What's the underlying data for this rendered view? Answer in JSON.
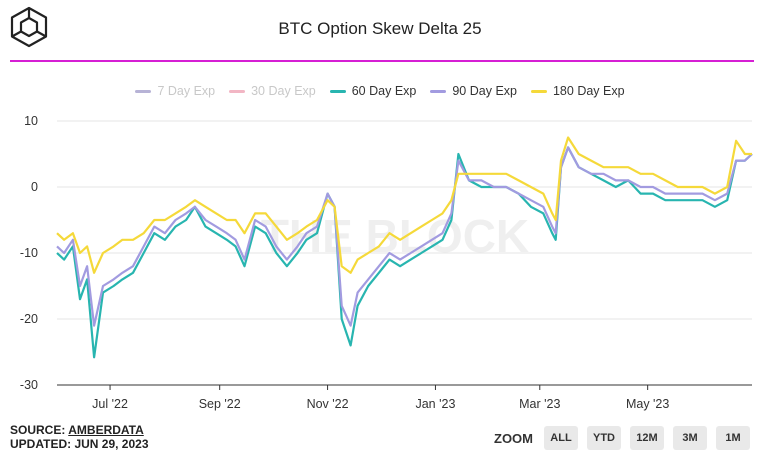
{
  "header": {
    "title": "BTC Option Skew Delta 25"
  },
  "watermark": "THE BLOCK",
  "footer": {
    "source_prefix": "SOURCE: ",
    "source_name": "AMBERDATA",
    "updated": "UPDATED: JUN 29, 2023"
  },
  "zoom": {
    "label": "ZOOM",
    "buttons": [
      "ALL",
      "YTD",
      "12M",
      "3M",
      "1M"
    ]
  },
  "colors": {
    "accent_rule": "#d61fd4",
    "grid": "#e6e6e6",
    "axis": "#333333"
  },
  "chart_data": {
    "type": "line",
    "title": "BTC Option Skew Delta 25",
    "xlabel": "",
    "ylabel": "",
    "ylim": [
      -30,
      10
    ],
    "xlim": [
      "2022-06-01",
      "2023-06-29"
    ],
    "y_ticks": [
      10,
      0,
      -10,
      -20,
      -30
    ],
    "x_ticks": [
      {
        "label": "Jul '22",
        "date": "2022-07-01"
      },
      {
        "label": "Sep '22",
        "date": "2022-09-01"
      },
      {
        "label": "Nov '22",
        "date": "2022-11-01"
      },
      {
        "label": "Jan '23",
        "date": "2023-01-01"
      },
      {
        "label": "Mar '23",
        "date": "2023-03-01"
      },
      {
        "label": "May '23",
        "date": "2023-05-01"
      }
    ],
    "grid": true,
    "legend_position": "top-center",
    "series": [
      {
        "name": "7 Day Exp",
        "color": "#b7b3d6",
        "visible": false,
        "values": []
      },
      {
        "name": "30 Day Exp",
        "color": "#f2b6c4",
        "visible": false,
        "values": []
      },
      {
        "name": "60 Day Exp",
        "color": "#28b5b0",
        "visible": true,
        "values": [
          [
            "2022-06-01",
            -10
          ],
          [
            "2022-06-05",
            -11
          ],
          [
            "2022-06-10",
            -9
          ],
          [
            "2022-06-14",
            -17
          ],
          [
            "2022-06-18",
            -14
          ],
          [
            "2022-06-22",
            -25.8
          ],
          [
            "2022-06-27",
            -16
          ],
          [
            "2022-07-03",
            -15
          ],
          [
            "2022-07-08",
            -14
          ],
          [
            "2022-07-14",
            -13
          ],
          [
            "2022-07-20",
            -10
          ],
          [
            "2022-07-26",
            -7
          ],
          [
            "2022-08-01",
            -8
          ],
          [
            "2022-08-07",
            -6
          ],
          [
            "2022-08-13",
            -5
          ],
          [
            "2022-08-18",
            -3
          ],
          [
            "2022-08-24",
            -6
          ],
          [
            "2022-08-30",
            -7
          ],
          [
            "2022-09-05",
            -8
          ],
          [
            "2022-09-10",
            -9
          ],
          [
            "2022-09-15",
            -12
          ],
          [
            "2022-09-21",
            -6
          ],
          [
            "2022-09-27",
            -7
          ],
          [
            "2022-10-03",
            -10
          ],
          [
            "2022-10-09",
            -12
          ],
          [
            "2022-10-15",
            -10
          ],
          [
            "2022-10-20",
            -8
          ],
          [
            "2022-10-26",
            -7
          ],
          [
            "2022-11-01",
            -1
          ],
          [
            "2022-11-05",
            -3
          ],
          [
            "2022-11-09",
            -20
          ],
          [
            "2022-11-14",
            -24
          ],
          [
            "2022-11-18",
            -18
          ],
          [
            "2022-11-24",
            -15
          ],
          [
            "2022-11-30",
            -13
          ],
          [
            "2022-12-06",
            -11
          ],
          [
            "2022-12-12",
            -12
          ],
          [
            "2022-12-18",
            -11
          ],
          [
            "2022-12-24",
            -10
          ],
          [
            "2022-12-30",
            -9
          ],
          [
            "2023-01-05",
            -8
          ],
          [
            "2023-01-10",
            -5
          ],
          [
            "2023-01-14",
            5
          ],
          [
            "2023-01-20",
            1
          ],
          [
            "2023-01-27",
            0
          ],
          [
            "2023-02-03",
            0
          ],
          [
            "2023-02-10",
            0
          ],
          [
            "2023-02-17",
            -1
          ],
          [
            "2023-02-24",
            -3
          ],
          [
            "2023-03-03",
            -4
          ],
          [
            "2023-03-08",
            -7
          ],
          [
            "2023-03-10",
            -8
          ],
          [
            "2023-03-13",
            3
          ],
          [
            "2023-03-17",
            6
          ],
          [
            "2023-03-23",
            3
          ],
          [
            "2023-03-30",
            2
          ],
          [
            "2023-04-06",
            1
          ],
          [
            "2023-04-13",
            0
          ],
          [
            "2023-04-20",
            1
          ],
          [
            "2023-04-27",
            -1
          ],
          [
            "2023-05-04",
            -1
          ],
          [
            "2023-05-11",
            -2
          ],
          [
            "2023-05-18",
            -2
          ],
          [
            "2023-05-25",
            -2
          ],
          [
            "2023-06-01",
            -2
          ],
          [
            "2023-06-08",
            -3
          ],
          [
            "2023-06-15",
            -2
          ],
          [
            "2023-06-20",
            4
          ],
          [
            "2023-06-25",
            4
          ],
          [
            "2023-06-29",
            5
          ]
        ]
      },
      {
        "name": "90 Day Exp",
        "color": "#a29be0",
        "visible": true,
        "values": [
          [
            "2022-06-01",
            -9
          ],
          [
            "2022-06-05",
            -10
          ],
          [
            "2022-06-10",
            -8
          ],
          [
            "2022-06-14",
            -15
          ],
          [
            "2022-06-18",
            -12
          ],
          [
            "2022-06-22",
            -21
          ],
          [
            "2022-06-27",
            -15
          ],
          [
            "2022-07-03",
            -14
          ],
          [
            "2022-07-08",
            -13
          ],
          [
            "2022-07-14",
            -12
          ],
          [
            "2022-07-20",
            -9
          ],
          [
            "2022-07-26",
            -6
          ],
          [
            "2022-08-01",
            -7
          ],
          [
            "2022-08-07",
            -5
          ],
          [
            "2022-08-13",
            -4
          ],
          [
            "2022-08-18",
            -3
          ],
          [
            "2022-08-24",
            -5
          ],
          [
            "2022-08-30",
            -6
          ],
          [
            "2022-09-05",
            -7
          ],
          [
            "2022-09-10",
            -8
          ],
          [
            "2022-09-15",
            -11
          ],
          [
            "2022-09-21",
            -5
          ],
          [
            "2022-09-27",
            -6
          ],
          [
            "2022-10-03",
            -9
          ],
          [
            "2022-10-09",
            -11
          ],
          [
            "2022-10-15",
            -9
          ],
          [
            "2022-10-20",
            -7
          ],
          [
            "2022-10-26",
            -6
          ],
          [
            "2022-11-01",
            -1
          ],
          [
            "2022-11-05",
            -3
          ],
          [
            "2022-11-09",
            -18
          ],
          [
            "2022-11-14",
            -21
          ],
          [
            "2022-11-18",
            -16
          ],
          [
            "2022-11-24",
            -14
          ],
          [
            "2022-11-30",
            -12
          ],
          [
            "2022-12-06",
            -10
          ],
          [
            "2022-12-12",
            -11
          ],
          [
            "2022-12-18",
            -10
          ],
          [
            "2022-12-24",
            -9
          ],
          [
            "2022-12-30",
            -8
          ],
          [
            "2023-01-05",
            -7
          ],
          [
            "2023-01-10",
            -4
          ],
          [
            "2023-01-14",
            4
          ],
          [
            "2023-01-20",
            1
          ],
          [
            "2023-01-27",
            1
          ],
          [
            "2023-02-03",
            0
          ],
          [
            "2023-02-10",
            0
          ],
          [
            "2023-02-17",
            -1
          ],
          [
            "2023-02-24",
            -2
          ],
          [
            "2023-03-03",
            -3
          ],
          [
            "2023-03-08",
            -6
          ],
          [
            "2023-03-10",
            -7
          ],
          [
            "2023-03-13",
            3
          ],
          [
            "2023-03-17",
            6
          ],
          [
            "2023-03-23",
            3
          ],
          [
            "2023-03-30",
            2
          ],
          [
            "2023-04-06",
            2
          ],
          [
            "2023-04-13",
            1
          ],
          [
            "2023-04-20",
            1
          ],
          [
            "2023-04-27",
            0
          ],
          [
            "2023-05-04",
            0
          ],
          [
            "2023-05-11",
            -1
          ],
          [
            "2023-05-18",
            -1
          ],
          [
            "2023-05-25",
            -1
          ],
          [
            "2023-06-01",
            -1
          ],
          [
            "2023-06-08",
            -2
          ],
          [
            "2023-06-15",
            -1
          ],
          [
            "2023-06-20",
            4
          ],
          [
            "2023-06-25",
            4
          ],
          [
            "2023-06-29",
            5
          ]
        ]
      },
      {
        "name": "180 Day Exp",
        "color": "#f5d93a",
        "visible": true,
        "values": [
          [
            "2022-06-01",
            -7
          ],
          [
            "2022-06-05",
            -8
          ],
          [
            "2022-06-10",
            -7
          ],
          [
            "2022-06-14",
            -10
          ],
          [
            "2022-06-18",
            -9
          ],
          [
            "2022-06-22",
            -13
          ],
          [
            "2022-06-27",
            -10
          ],
          [
            "2022-07-03",
            -9
          ],
          [
            "2022-07-08",
            -8
          ],
          [
            "2022-07-14",
            -8
          ],
          [
            "2022-07-20",
            -7
          ],
          [
            "2022-07-26",
            -5
          ],
          [
            "2022-08-01",
            -5
          ],
          [
            "2022-08-07",
            -4
          ],
          [
            "2022-08-13",
            -3
          ],
          [
            "2022-08-18",
            -2
          ],
          [
            "2022-08-24",
            -3
          ],
          [
            "2022-08-30",
            -4
          ],
          [
            "2022-09-05",
            -5
          ],
          [
            "2022-09-10",
            -5
          ],
          [
            "2022-09-15",
            -7
          ],
          [
            "2022-09-21",
            -4
          ],
          [
            "2022-09-27",
            -4
          ],
          [
            "2022-10-03",
            -6
          ],
          [
            "2022-10-09",
            -8
          ],
          [
            "2022-10-15",
            -7
          ],
          [
            "2022-10-20",
            -6
          ],
          [
            "2022-10-26",
            -5
          ],
          [
            "2022-11-01",
            -2
          ],
          [
            "2022-11-05",
            -3
          ],
          [
            "2022-11-09",
            -12
          ],
          [
            "2022-11-14",
            -13
          ],
          [
            "2022-11-18",
            -11
          ],
          [
            "2022-11-24",
            -10
          ],
          [
            "2022-11-30",
            -9
          ],
          [
            "2022-12-06",
            -7
          ],
          [
            "2022-12-12",
            -8
          ],
          [
            "2022-12-18",
            -7
          ],
          [
            "2022-12-24",
            -6
          ],
          [
            "2022-12-30",
            -5
          ],
          [
            "2023-01-05",
            -4
          ],
          [
            "2023-01-10",
            -2
          ],
          [
            "2023-01-14",
            2
          ],
          [
            "2023-01-20",
            2
          ],
          [
            "2023-01-27",
            2
          ],
          [
            "2023-02-03",
            2
          ],
          [
            "2023-02-10",
            2
          ],
          [
            "2023-02-17",
            1
          ],
          [
            "2023-02-24",
            0
          ],
          [
            "2023-03-03",
            -1
          ],
          [
            "2023-03-08",
            -4
          ],
          [
            "2023-03-10",
            -5
          ],
          [
            "2023-03-13",
            4
          ],
          [
            "2023-03-17",
            7.5
          ],
          [
            "2023-03-23",
            5
          ],
          [
            "2023-03-30",
            4
          ],
          [
            "2023-04-06",
            3
          ],
          [
            "2023-04-13",
            3
          ],
          [
            "2023-04-20",
            3
          ],
          [
            "2023-04-27",
            2
          ],
          [
            "2023-05-04",
            2
          ],
          [
            "2023-05-11",
            1
          ],
          [
            "2023-05-18",
            0
          ],
          [
            "2023-05-25",
            0
          ],
          [
            "2023-06-01",
            0
          ],
          [
            "2023-06-08",
            -1
          ],
          [
            "2023-06-15",
            0
          ],
          [
            "2023-06-20",
            7
          ],
          [
            "2023-06-25",
            5
          ],
          [
            "2023-06-29",
            5
          ]
        ]
      }
    ]
  }
}
